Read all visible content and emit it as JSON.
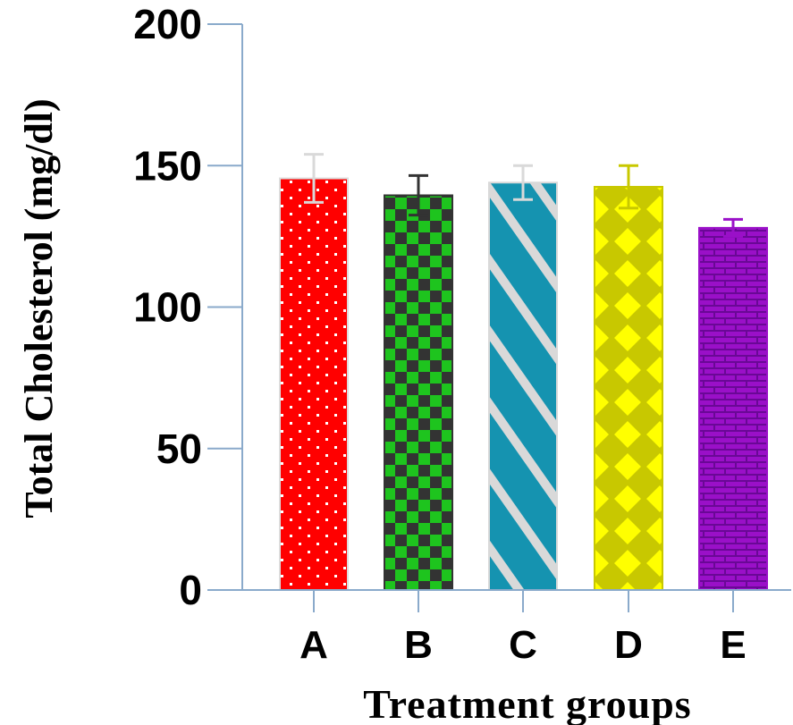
{
  "chart_data": {
    "type": "bar",
    "xlabel": "Treatment groups",
    "ylabel": "Total Cholesterol (mg/dl)",
    "ylim": [
      0,
      200
    ],
    "yticks": [
      0,
      50,
      100,
      150,
      200
    ],
    "categories": [
      "A",
      "B",
      "C",
      "D",
      "E"
    ],
    "values": [
      145.5,
      139.5,
      144.0,
      142.5,
      128.0
    ],
    "errors": [
      8.5,
      7.0,
      6.0,
      7.5,
      3.0
    ],
    "grid": false,
    "bars": [
      {
        "fill": "#ff0000",
        "pattern": "dots",
        "pattern_color": "#ffffff",
        "error_color": "#d9d9d9"
      },
      {
        "fill": "#1ec41e",
        "pattern": "checker",
        "pattern_color": "#333333",
        "error_color": "#333333"
      },
      {
        "fill": "#1593b0",
        "pattern": "diagonal-stripes",
        "pattern_color": "#d9d9d9",
        "error_color": "#d9d9d9"
      },
      {
        "fill": "#c8c800",
        "pattern": "diamonds",
        "pattern_color": "#ffff00",
        "error_color": "#c8c800"
      },
      {
        "fill": "#9a10c8",
        "pattern": "bricks",
        "pattern_color": "#6a0896",
        "error_color": "#9a10c8"
      }
    ]
  }
}
